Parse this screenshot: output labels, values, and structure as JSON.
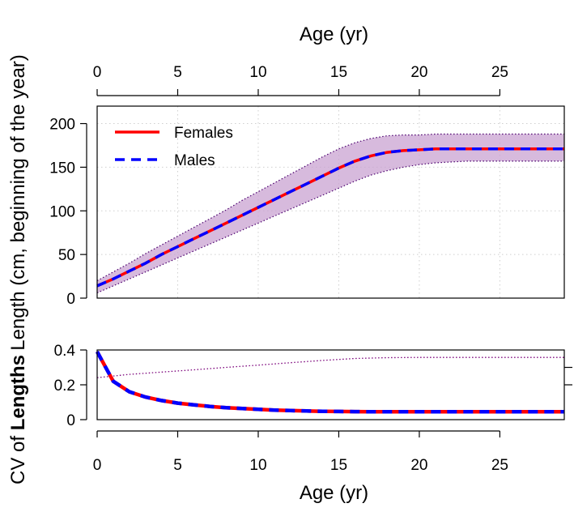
{
  "chart_data": [
    {
      "type": "line",
      "panel": "top",
      "xlabel": "Age (yr)",
      "xlabel_position": "top",
      "ylabel": "Length (cm, beginning of the year)",
      "xlim": [
        0,
        29
      ],
      "ylim": [
        0,
        220
      ],
      "x_ticks": [
        0,
        5,
        10,
        15,
        20,
        25
      ],
      "y_ticks": [
        0,
        50,
        100,
        150,
        200
      ],
      "grid": true,
      "legend": "top-left",
      "band": {
        "x": [
          0,
          1,
          2,
          3,
          4,
          5,
          6,
          7,
          8,
          9,
          10,
          11,
          12,
          13,
          14,
          15,
          16,
          17,
          18,
          19,
          20,
          21,
          22,
          23,
          24,
          25,
          26,
          27,
          28,
          29
        ],
        "lower": [
          6,
          14,
          22,
          30,
          38,
          46,
          54,
          62,
          70,
          78,
          86,
          94,
          102,
          110,
          118,
          126,
          134,
          141,
          146,
          150,
          153,
          155,
          156,
          157,
          157,
          157,
          157,
          157,
          157,
          157
        ],
        "upper": [
          20,
          30,
          40,
          51,
          61,
          71,
          81,
          91,
          101,
          112,
          122,
          132,
          142,
          152,
          162,
          171,
          178,
          183,
          186,
          187,
          187,
          188,
          188,
          188,
          188,
          188,
          188,
          188,
          188,
          188
        ],
        "color": "#c9a3d1"
      },
      "series": [
        {
          "name": "Females",
          "color": "#ff0000",
          "dash": "solid",
          "x": [
            0,
            1,
            2,
            3,
            4,
            5,
            6,
            7,
            8,
            9,
            10,
            11,
            12,
            13,
            14,
            15,
            16,
            17,
            18,
            19,
            20,
            21,
            22,
            23,
            24,
            25,
            26,
            27,
            28,
            29
          ],
          "values": [
            14,
            22,
            31,
            40,
            50,
            59,
            68,
            77,
            86,
            95,
            104,
            113,
            122,
            131,
            140,
            149,
            157,
            163,
            167,
            169,
            170,
            171,
            171,
            171,
            171,
            171,
            171,
            171,
            171,
            171
          ]
        },
        {
          "name": "Males",
          "color": "#0000ff",
          "dash": "dashed",
          "x": [
            0,
            1,
            2,
            3,
            4,
            5,
            6,
            7,
            8,
            9,
            10,
            11,
            12,
            13,
            14,
            15,
            16,
            17,
            18,
            19,
            20,
            21,
            22,
            23,
            24,
            25,
            26,
            27,
            28,
            29
          ],
          "values": [
            14,
            22,
            31,
            40,
            50,
            59,
            68,
            77,
            86,
            95,
            104,
            113,
            122,
            131,
            140,
            149,
            157,
            163,
            167,
            169,
            170,
            171,
            171,
            171,
            171,
            171,
            171,
            171,
            171,
            171
          ]
        }
      ]
    },
    {
      "type": "line",
      "panel": "bottom",
      "xlabel": "Age (yr)",
      "ylabel": "CV of lengths",
      "xlim": [
        0,
        29
      ],
      "ylim": [
        0,
        0.4
      ],
      "x_ticks": [
        0,
        5,
        10,
        15,
        20,
        25
      ],
      "y_ticks": [
        0,
        0.2,
        0.4
      ],
      "y_tick_labels": [
        "0",
        "0.2",
        "0.4"
      ],
      "right_ticks": [
        0.2,
        0.3
      ],
      "series": [
        {
          "name": "Females",
          "color": "#ff0000",
          "dash": "solid",
          "x": [
            0,
            1,
            2,
            3,
            4,
            5,
            6,
            7,
            8,
            9,
            10,
            11,
            12,
            13,
            14,
            15,
            16,
            17,
            18,
            19,
            20,
            21,
            22,
            23,
            24,
            25,
            26,
            27,
            28,
            29
          ],
          "values": [
            0.39,
            0.22,
            0.16,
            0.13,
            0.11,
            0.095,
            0.085,
            0.076,
            0.069,
            0.064,
            0.059,
            0.055,
            0.052,
            0.05,
            0.048,
            0.047,
            0.046,
            0.045,
            0.045,
            0.045,
            0.045,
            0.045,
            0.045,
            0.045,
            0.045,
            0.045,
            0.045,
            0.045,
            0.045,
            0.045
          ]
        },
        {
          "name": "Males",
          "color": "#0000ff",
          "dash": "dashed",
          "x": [
            0,
            1,
            2,
            3,
            4,
            5,
            6,
            7,
            8,
            9,
            10,
            11,
            12,
            13,
            14,
            15,
            16,
            17,
            18,
            19,
            20,
            21,
            22,
            23,
            24,
            25,
            26,
            27,
            28,
            29
          ],
          "values": [
            0.39,
            0.22,
            0.16,
            0.13,
            0.11,
            0.095,
            0.085,
            0.076,
            0.069,
            0.064,
            0.059,
            0.055,
            0.052,
            0.05,
            0.048,
            0.047,
            0.046,
            0.045,
            0.045,
            0.045,
            0.045,
            0.045,
            0.045,
            0.045,
            0.045,
            0.045,
            0.045,
            0.045,
            0.045,
            0.045
          ]
        }
      ],
      "secondary_line": {
        "color": "#7a007a",
        "dash": "dotted",
        "x": [
          0,
          2,
          4,
          6,
          8,
          10,
          12,
          14,
          16,
          18,
          20,
          22,
          24,
          26,
          28,
          29
        ],
        "values": [
          0.241,
          0.26,
          0.273,
          0.286,
          0.3,
          0.313,
          0.327,
          0.34,
          0.351,
          0.356,
          0.357,
          0.357,
          0.357,
          0.357,
          0.357,
          0.357
        ]
      }
    }
  ],
  "axis_text": {
    "top_xlabel": "Age (yr)",
    "bottom_xlabel": "Age (yr)",
    "ylabel_top": "Length (cm, beginning of the year)",
    "ylabel_bottom_prefix": "CV of ",
    "ylabel_bottom_overlap": "Lengths"
  }
}
